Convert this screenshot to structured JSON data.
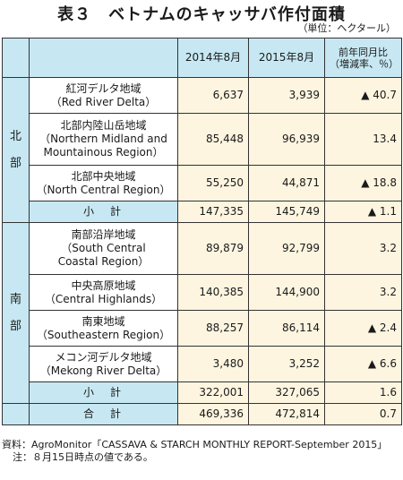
{
  "title": "表３　ベトナムのキャッサバ作付面積",
  "unit": "（単位：ヘクタール）",
  "table": {
    "headers": [
      "2014年8月",
      "2015年8月",
      "前年同月比\n（増減率、％）"
    ],
    "north": {
      "label": "北部",
      "rows": [
        {
          "name_jp": "紅河デルタ地域",
          "name_en": "（Red River Delta）",
          "y2014": "6,637",
          "y2015": "3,939",
          "change": "▲ 40.7"
        },
        {
          "name_jp": "北部内陸山岳地域",
          "name_en": "（Northern Midland and Mountainous Region）",
          "y2014": "85,448",
          "y2015": "96,939",
          "change": "13.4"
        },
        {
          "name_jp": "北部中央地域",
          "name_en": "（North Central Region）",
          "y2014": "55,250",
          "y2015": "44,871",
          "change": "▲ 18.8"
        }
      ],
      "subtotal": {
        "label": "小　計",
        "y2014": "147,335",
        "y2015": "145,749",
        "change": "▲ 1.1"
      }
    },
    "south": {
      "label": "南部",
      "rows": [
        {
          "name_jp": "南部沿岸地域",
          "name_en": "（South Central Coastal Region）",
          "y2014": "89,879",
          "y2015": "92,799",
          "change": "3.2"
        },
        {
          "name_jp": "中央高原地域",
          "name_en": "（Central Highlands）",
          "y2014": "140,385",
          "y2015": "144,900",
          "change": "3.2"
        },
        {
          "name_jp": "南東地域",
          "name_en": "（Southeastern Region）",
          "y2014": "88,257",
          "y2015": "86,114",
          "change": "▲ 2.4"
        },
        {
          "name_jp": "メコン河デルタ地域",
          "name_en": "（Mekong River Delta）",
          "y2014": "3,480",
          "y2015": "3,252",
          "change": "▲ 6.6"
        }
      ],
      "subtotal": {
        "label": "小　計",
        "y2014": "322,001",
        "y2015": "327,065",
        "change": "1.6"
      }
    },
    "total": {
      "label": "合　計",
      "y2014": "469,336",
      "y2015": "472,814",
      "change": "0.7"
    }
  },
  "notes": {
    "source_label": "資料：",
    "source_text": "AgroMonitor「CASSAVA & STARCH MONTHLY REPORT-September 2015」",
    "note_label": "注：",
    "note_text": "８月15日時点の値である。"
  },
  "colors": {
    "header_bg": "#c7e8f3",
    "value_bg": "#fdf5e0"
  }
}
